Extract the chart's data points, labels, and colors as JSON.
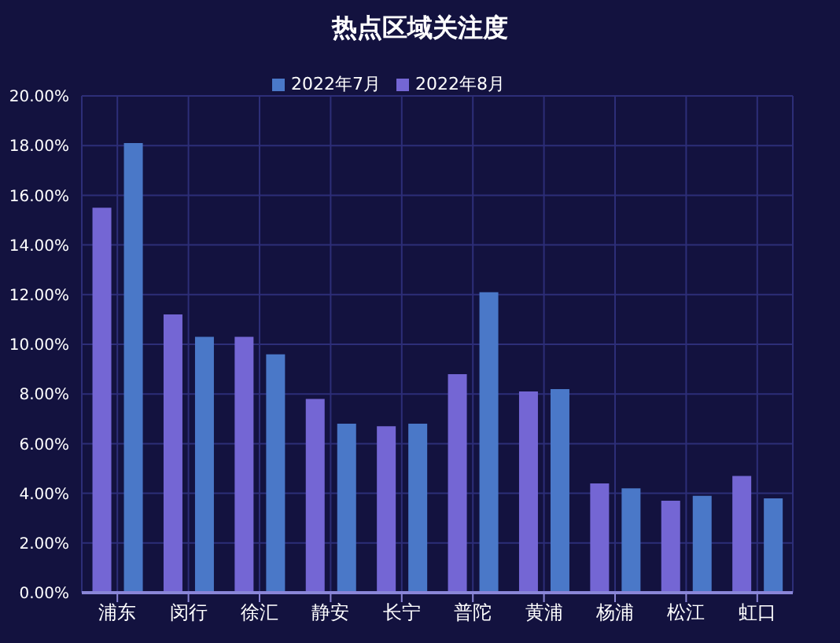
{
  "chart_data": {
    "type": "bar",
    "title": "热点区域关注度",
    "categories": [
      "浦东",
      "闵行",
      "徐汇",
      "静安",
      "长宁",
      "普陀",
      "黄浦",
      "杨浦",
      "松江",
      "虹口"
    ],
    "series": [
      {
        "name": "2022年8月",
        "color": "#7466d4",
        "values": [
          15.5,
          11.2,
          10.3,
          7.8,
          6.7,
          8.8,
          8.1,
          4.4,
          3.7,
          4.7
        ]
      },
      {
        "name": "2022年7月",
        "color": "#4a78c8",
        "values": [
          18.1,
          10.3,
          9.6,
          6.8,
          6.8,
          12.1,
          8.2,
          4.2,
          3.9,
          3.8
        ]
      }
    ],
    "ylim": [
      0,
      20
    ],
    "yticks": [
      {
        "value": 0,
        "label": "0.00%"
      },
      {
        "value": 2,
        "label": "2.00%"
      },
      {
        "value": 4,
        "label": "4.00%"
      },
      {
        "value": 6,
        "label": "6.00%"
      },
      {
        "value": 8,
        "label": "8.00%"
      },
      {
        "value": 10,
        "label": "10.00%"
      },
      {
        "value": 12,
        "label": "12.00%"
      },
      {
        "value": 14,
        "label": "14.00%"
      },
      {
        "value": 16,
        "label": "16.00%"
      },
      {
        "value": 18,
        "label": "18.00%"
      },
      {
        "value": 20,
        "label": "20.00%"
      }
    ],
    "grid": true,
    "legend": "top"
  }
}
